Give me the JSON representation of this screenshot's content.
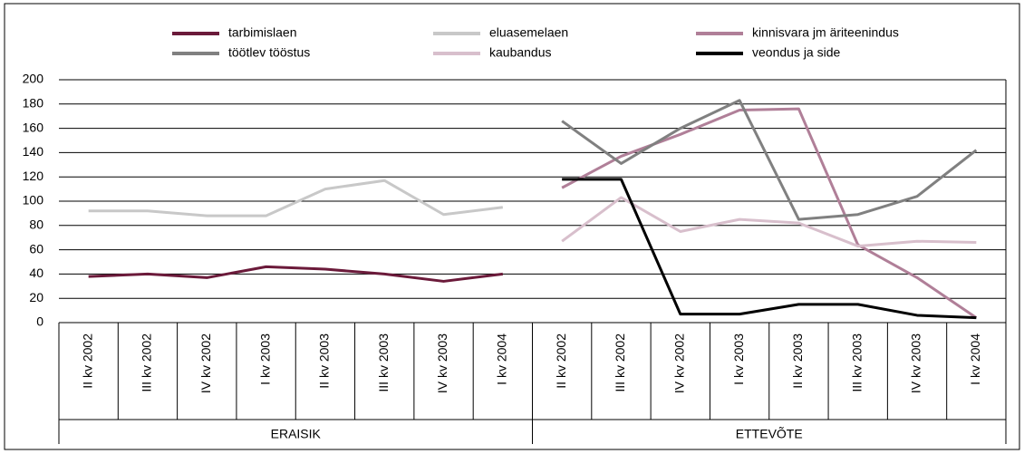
{
  "chart_data": {
    "type": "line",
    "categories": [
      "II kv 2002",
      "III kv 2002",
      "IV kv 2002",
      "I kv 2003",
      "II kv 2003",
      "III kv 2003",
      "IV kv 2003",
      "I kv 2004",
      "II kv 2002",
      "III kv 2002",
      "IV kv 2002",
      "I kv 2003",
      "II kv 2003",
      "III kv 2003",
      "IV kv 2003",
      "I kv 2004"
    ],
    "groups": [
      "ERAISIK",
      "ETTEVÕTE"
    ],
    "series": [
      {
        "name": "tarbimislaen",
        "color": "#6b1a3a",
        "values": [
          38,
          40,
          37,
          46,
          44,
          40,
          34,
          40,
          null,
          null,
          null,
          null,
          null,
          null,
          null,
          null
        ]
      },
      {
        "name": "eluasemelaen",
        "color": "#c8c8c8",
        "values": [
          92,
          92,
          88,
          88,
          110,
          117,
          89,
          95,
          null,
          null,
          null,
          null,
          null,
          null,
          null,
          null
        ]
      },
      {
        "name": "kinnisvara jm äriteenindus",
        "color": "#b07f98",
        "values": [
          null,
          null,
          null,
          null,
          null,
          null,
          null,
          null,
          111,
          137,
          155,
          175,
          176,
          64,
          37,
          4
        ]
      },
      {
        "name": "töötlev tööstus",
        "color": "#808080",
        "values": [
          null,
          null,
          null,
          null,
          null,
          null,
          null,
          null,
          166,
          131,
          160,
          183,
          85,
          89,
          104,
          142
        ]
      },
      {
        "name": "kaubandus",
        "color": "#d8bfcc",
        "values": [
          null,
          null,
          null,
          null,
          null,
          null,
          null,
          null,
          67,
          103,
          75,
          85,
          82,
          63,
          67,
          66
        ]
      },
      {
        "name": "veondus ja side",
        "color": "#000000",
        "values": [
          null,
          null,
          null,
          null,
          null,
          null,
          null,
          null,
          118,
          118,
          7,
          7,
          15,
          15,
          6,
          4
        ]
      }
    ],
    "ylim": [
      0,
      200
    ],
    "yticks": [
      0,
      20,
      40,
      60,
      80,
      100,
      120,
      140,
      160,
      180,
      200
    ],
    "grid": true
  }
}
